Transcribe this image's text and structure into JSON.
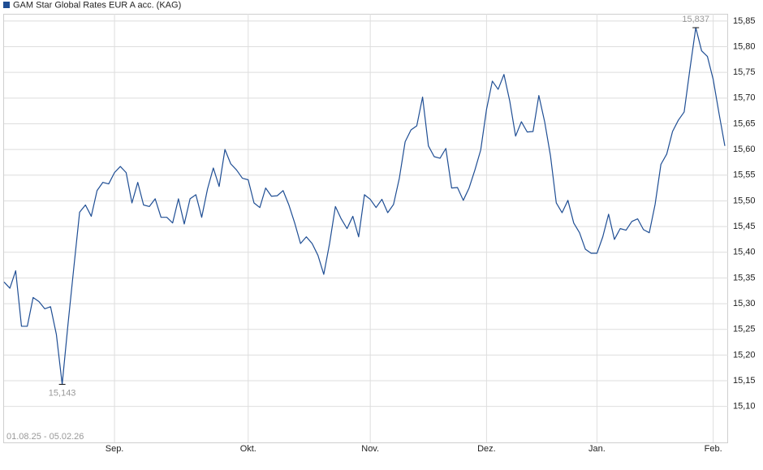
{
  "chart_data": {
    "type": "line",
    "title": "GAM Star Global Rates EUR A acc. (KAG)",
    "date_range": "01.08.25 - 05.02.26",
    "categories": [
      null,
      null,
      null,
      null,
      null,
      null,
      null,
      null,
      null,
      null,
      null,
      null,
      null,
      null,
      null,
      null,
      null,
      null,
      null,
      "Sep.",
      null,
      null,
      null,
      null,
      null,
      null,
      null,
      null,
      null,
      null,
      null,
      null,
      null,
      null,
      null,
      null,
      null,
      null,
      null,
      null,
      null,
      null,
      "Okt.",
      null,
      null,
      null,
      null,
      null,
      null,
      null,
      null,
      null,
      null,
      null,
      null,
      null,
      null,
      null,
      null,
      null,
      null,
      null,
      null,
      "Nov.",
      null,
      null,
      null,
      null,
      null,
      null,
      null,
      null,
      null,
      null,
      null,
      null,
      null,
      null,
      null,
      null,
      null,
      null,
      null,
      "Dez.",
      null,
      null,
      null,
      null,
      null,
      null,
      null,
      null,
      null,
      null,
      null,
      null,
      null,
      null,
      null,
      null,
      null,
      null,
      "Jan.",
      null,
      null,
      null,
      null,
      null,
      null,
      null,
      null,
      null,
      null,
      null,
      null,
      null,
      null,
      null,
      null,
      null,
      null,
      null,
      "Feb.",
      null,
      null
    ],
    "series": [
      {
        "name": "GAM Star Global Rates EUR A acc. (KAG)",
        "color": "#1f4e94",
        "values": [
          15.342,
          15.33,
          15.364,
          15.256,
          15.256,
          15.312,
          15.304,
          15.29,
          15.294,
          15.24,
          15.143,
          15.26,
          15.37,
          15.478,
          15.492,
          15.47,
          15.52,
          15.536,
          15.533,
          15.555,
          15.567,
          15.555,
          15.496,
          15.536,
          15.492,
          15.489,
          15.504,
          15.468,
          15.468,
          15.457,
          15.504,
          15.455,
          15.504,
          15.512,
          15.468,
          15.523,
          15.564,
          15.528,
          15.6,
          15.572,
          15.56,
          15.544,
          15.541,
          15.496,
          15.487,
          15.525,
          15.509,
          15.51,
          15.52,
          15.492,
          15.457,
          15.417,
          15.43,
          15.417,
          15.394,
          15.357,
          15.417,
          15.489,
          15.465,
          15.446,
          15.47,
          15.43,
          15.512,
          15.503,
          15.487,
          15.503,
          15.477,
          15.493,
          15.544,
          15.615,
          15.638,
          15.646,
          15.702,
          15.607,
          15.586,
          15.583,
          15.602,
          15.525,
          15.526,
          15.501,
          15.525,
          15.56,
          15.599,
          15.678,
          15.733,
          15.717,
          15.746,
          15.694,
          15.626,
          15.654,
          15.634,
          15.635,
          15.705,
          15.654,
          15.588,
          15.496,
          15.477,
          15.501,
          15.457,
          15.438,
          15.406,
          15.398,
          15.398,
          15.43,
          15.474,
          15.425,
          15.446,
          15.443,
          15.46,
          15.465,
          15.444,
          15.438,
          15.493,
          15.571,
          15.591,
          15.635,
          15.657,
          15.673,
          15.757,
          15.837,
          15.792,
          15.781,
          15.736,
          15.67,
          15.607
        ],
        "value_labels": [
          null,
          null,
          null,
          null,
          null,
          null,
          null,
          null,
          null,
          null,
          "15,143",
          null,
          null,
          null,
          null,
          null,
          null,
          null,
          null,
          null,
          null,
          null,
          null,
          null,
          null,
          null,
          null,
          null,
          null,
          null,
          null,
          null,
          null,
          null,
          null,
          null,
          null,
          null,
          null,
          null,
          null,
          null,
          null,
          null,
          null,
          null,
          null,
          null,
          null,
          null,
          null,
          null,
          null,
          null,
          null,
          null,
          null,
          null,
          null,
          null,
          null,
          null,
          null,
          null,
          null,
          null,
          null,
          null,
          null,
          null,
          null,
          null,
          null,
          null,
          null,
          null,
          null,
          null,
          null,
          null,
          null,
          null,
          null,
          null,
          null,
          null,
          null,
          null,
          null,
          null,
          null,
          null,
          null,
          null,
          null,
          null,
          null,
          null,
          null,
          null,
          null,
          null,
          null,
          null,
          null,
          null,
          null,
          null,
          null,
          null,
          null,
          null,
          null,
          null,
          null,
          null,
          null,
          null,
          null,
          "15,837",
          null,
          null,
          null,
          null,
          null
        ]
      }
    ],
    "ylim": [
      15.03,
      15.864
    ],
    "yticks": [
      {
        "value": 15.1,
        "label": "15,10"
      },
      {
        "value": 15.15,
        "label": "15,15"
      },
      {
        "value": 15.2,
        "label": "15,20"
      },
      {
        "value": 15.25,
        "label": "15,25"
      },
      {
        "value": 15.3,
        "label": "15,30"
      },
      {
        "value": 15.35,
        "label": "15,35"
      },
      {
        "value": 15.4,
        "label": "15,40"
      },
      {
        "value": 15.45,
        "label": "15,45"
      },
      {
        "value": 15.5,
        "label": "15,50"
      },
      {
        "value": 15.55,
        "label": "15,55"
      },
      {
        "value": 15.6,
        "label": "15,60"
      },
      {
        "value": 15.65,
        "label": "15,65"
      },
      {
        "value": 15.7,
        "label": "15,70"
      },
      {
        "value": 15.75,
        "label": "15,75"
      },
      {
        "value": 15.8,
        "label": "15,80"
      },
      {
        "value": 15.85,
        "label": "15,85"
      }
    ],
    "grid": true
  }
}
